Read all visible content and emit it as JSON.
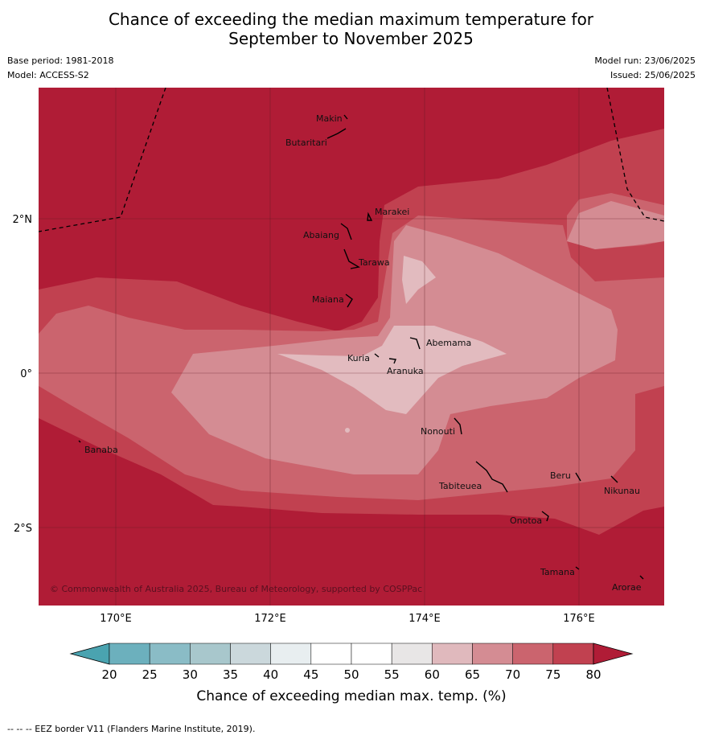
{
  "title": {
    "line1": "Chance of exceeding the median maximum temperature for",
    "line2": "September to November 2025"
  },
  "meta": {
    "base_period": "Base period: 1981-2018",
    "model": "Model: ACCESS-S2",
    "model_run": "Model run: 23/06/2025",
    "issued": "Issued: 25/06/2025"
  },
  "map": {
    "lon_labels": [
      "170°E",
      "172°E",
      "174°E",
      "176°E"
    ],
    "lat_labels": [
      "2°N",
      "0°",
      "2°S"
    ],
    "places": [
      "Makin",
      "Butaritari",
      "Marakei",
      "Abaiang",
      "Tarawa",
      "Maiana",
      "Abemama",
      "Kuria",
      "Aranuka",
      "Banaba",
      "Nonouti",
      "Tabiteuea",
      "Beru",
      "Nikunau",
      "Onotoa",
      "Tamana",
      "Arorae"
    ],
    "copyright": "© Commonwealth of Australia 2025, Bureau of Meteorology, supported by COSPPac",
    "colors": {
      "c80": "#b01c36",
      "c75": "#c14150",
      "c70": "#cb646e",
      "c65": "#d48c93",
      "c60": "#e2bbbf"
    }
  },
  "colorbar": {
    "ticks": [
      "20",
      "25",
      "30",
      "35",
      "40",
      "45",
      "50",
      "55",
      "60",
      "65",
      "70",
      "75",
      "80"
    ],
    "colors": [
      "#4aa3b0",
      "#6cb0bd",
      "#8abcc6",
      "#a8c7cc",
      "#cbd8dc",
      "#e8eef0",
      "#ffffff",
      "#ffffff",
      "#e8e6e6",
      "#e0b9bd",
      "#d48c93",
      "#cb646e",
      "#c14150",
      "#b01c36"
    ],
    "label": "Chance of exceeding median max. temp. (%)"
  },
  "footnote": "--  --  -- EEZ border V11 (Flanders Marine Institute, 2019)."
}
